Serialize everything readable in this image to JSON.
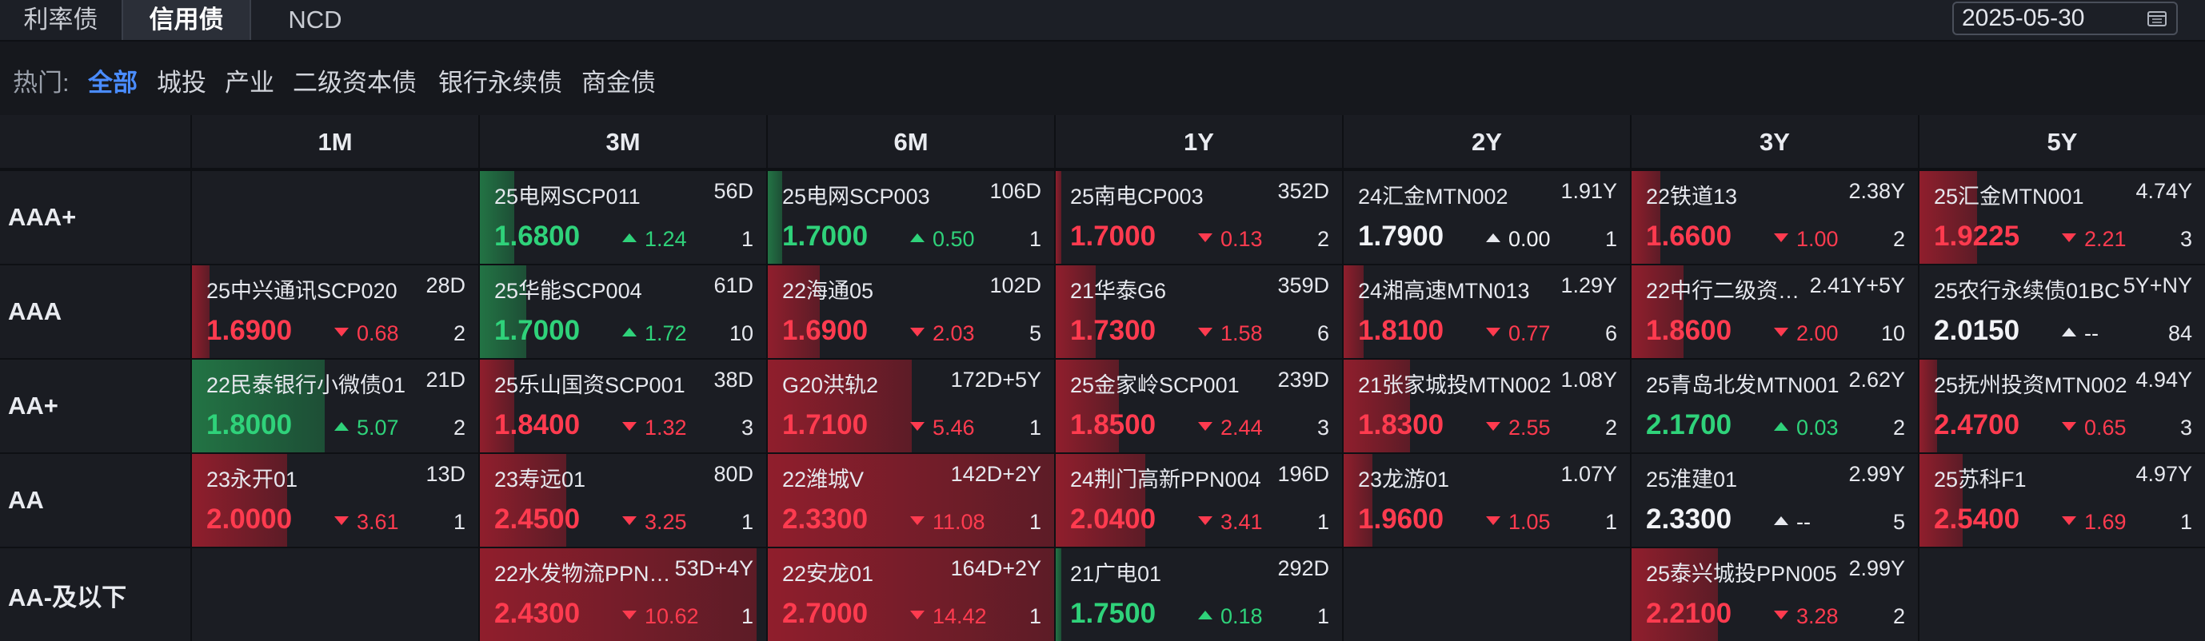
{
  "tabs": [
    {
      "label": "利率债"
    },
    {
      "label": "信用债"
    },
    {
      "label": "NCD"
    }
  ],
  "date": "2025-05-30",
  "filters": {
    "hot_label": "热门:",
    "chips": [
      "全部",
      "城投",
      "产业",
      "二级资本债",
      "银行永续债",
      "商金债"
    ],
    "active": "全部"
  },
  "terms": [
    "1M",
    "3M",
    "6M",
    "1Y",
    "2Y",
    "3Y",
    "5Y"
  ],
  "ratings": [
    "AAA+",
    "AAA",
    "AA+",
    "AA",
    "AA-及以下"
  ],
  "colors": {
    "up": "#ff3b4f",
    "down": "#2fd27a",
    "accent": "#4a8cff"
  },
  "cells": [
    [
      null,
      {
        "name": "25电网SCP011",
        "term": "56D",
        "yield": "1.6800",
        "change": "1.24",
        "dir": "down",
        "count": "1",
        "heat": 0.12
      },
      {
        "name": "25电网SCP003",
        "term": "106D",
        "yield": "1.7000",
        "change": "0.50",
        "dir": "down",
        "count": "1",
        "heat": 0.05
      },
      {
        "name": "25南电CP003",
        "term": "352D",
        "yield": "1.7000",
        "change": "0.13",
        "dir": "up",
        "count": "2",
        "heat": 0.02
      },
      {
        "name": "24汇金MTN002",
        "term": "1.91Y",
        "yield": "1.7900",
        "change": "0.00",
        "dir": "flat",
        "count": "1",
        "heat": 0
      },
      {
        "name": "22铁道13",
        "term": "2.38Y",
        "yield": "1.6600",
        "change": "1.00",
        "dir": "up",
        "count": "2",
        "heat": 0.1
      },
      {
        "name": "25汇金MTN001",
        "term": "4.74Y",
        "yield": "1.9225",
        "change": "2.21",
        "dir": "up",
        "count": "3",
        "heat": 0.2
      }
    ],
    [
      {
        "name": "25中兴通讯SCP020",
        "term": "28D",
        "yield": "1.6900",
        "change": "0.68",
        "dir": "up",
        "count": "2",
        "heat": 0.06
      },
      {
        "name": "25华能SCP004",
        "term": "61D",
        "yield": "1.7000",
        "change": "1.72",
        "dir": "down",
        "count": "10",
        "heat": 0.16
      },
      {
        "name": "22海通05",
        "term": "102D",
        "yield": "1.6900",
        "change": "2.03",
        "dir": "up",
        "count": "5",
        "heat": 0.18
      },
      {
        "name": "21华泰G6",
        "term": "359D",
        "yield": "1.7300",
        "change": "1.58",
        "dir": "up",
        "count": "6",
        "heat": 0.14
      },
      {
        "name": "24湘高速MTN013",
        "term": "1.29Y",
        "yield": "1.8100",
        "change": "0.77",
        "dir": "up",
        "count": "6",
        "heat": 0.07
      },
      {
        "name": "22中行二级资…",
        "term": "2.41Y+5Y",
        "yield": "1.8600",
        "change": "2.00",
        "dir": "up",
        "count": "10",
        "heat": 0.18
      },
      {
        "name": "25农行永续债01BC",
        "term": "5Y+NY",
        "yield": "2.0150",
        "change": "--",
        "dir": "flat",
        "count": "84",
        "heat": 0
      }
    ],
    [
      {
        "name": "22民泰银行小微债01",
        "term": "21D",
        "yield": "1.8000",
        "change": "5.07",
        "dir": "down",
        "count": "2",
        "heat": 0.46
      },
      {
        "name": "25乐山国资SCP001",
        "term": "38D",
        "yield": "1.8400",
        "change": "1.32",
        "dir": "up",
        "count": "3",
        "heat": 0.12
      },
      {
        "name": "G20洪轨2",
        "term": "172D+5Y",
        "yield": "1.7100",
        "change": "5.46",
        "dir": "up",
        "count": "1",
        "heat": 0.5
      },
      {
        "name": "25金家岭SCP001",
        "term": "239D",
        "yield": "1.8500",
        "change": "2.44",
        "dir": "up",
        "count": "3",
        "heat": 0.22
      },
      {
        "name": "21张家城投MTN002",
        "term": "1.08Y",
        "yield": "1.8300",
        "change": "2.55",
        "dir": "up",
        "count": "2",
        "heat": 0.23
      },
      {
        "name": "25青岛北发MTN001",
        "term": "2.62Y",
        "yield": "2.1700",
        "change": "0.03",
        "dir": "down",
        "count": "2",
        "heat": 0
      },
      {
        "name": "25抚州投资MTN002",
        "term": "4.94Y",
        "yield": "2.4700",
        "change": "0.65",
        "dir": "up",
        "count": "3",
        "heat": 0.06
      }
    ],
    [
      {
        "name": "23永开01",
        "term": "13D",
        "yield": "2.0000",
        "change": "3.61",
        "dir": "up",
        "count": "1",
        "heat": 0.33
      },
      {
        "name": "23寿远01",
        "term": "80D",
        "yield": "2.4500",
        "change": "3.25",
        "dir": "up",
        "count": "1",
        "heat": 0.3
      },
      {
        "name": "22潍城V",
        "term": "142D+2Y",
        "yield": "2.3300",
        "change": "11.08",
        "dir": "up",
        "count": "1",
        "heat": 1.0
      },
      {
        "name": "24荆门高新PPN004",
        "term": "196D",
        "yield": "2.0400",
        "change": "3.41",
        "dir": "up",
        "count": "1",
        "heat": 0.31
      },
      {
        "name": "23龙游01",
        "term": "1.07Y",
        "yield": "1.9600",
        "change": "1.05",
        "dir": "up",
        "count": "1",
        "heat": 0.1
      },
      {
        "name": "25淮建01",
        "term": "2.99Y",
        "yield": "2.3300",
        "change": "--",
        "dir": "flat",
        "count": "5",
        "heat": 0
      },
      {
        "name": "25苏科F1",
        "term": "4.97Y",
        "yield": "2.5400",
        "change": "1.69",
        "dir": "up",
        "count": "1",
        "heat": 0.15
      }
    ],
    [
      null,
      {
        "name": "22水发物流PPN…",
        "term": "53D+4Y",
        "yield": "2.4300",
        "change": "10.62",
        "dir": "up",
        "count": "1",
        "heat": 0.96
      },
      {
        "name": "22安龙01",
        "term": "164D+2Y",
        "yield": "2.7000",
        "change": "14.42",
        "dir": "up",
        "count": "1",
        "heat": 1.0
      },
      {
        "name": "21广电01",
        "term": "292D",
        "yield": "1.7500",
        "change": "0.18",
        "dir": "down",
        "count": "1",
        "heat": 0.02
      },
      null,
      {
        "name": "25泰兴城投PPN005",
        "term": "2.99Y",
        "yield": "2.2100",
        "change": "3.28",
        "dir": "up",
        "count": "2",
        "heat": 0.3
      },
      null
    ]
  ]
}
